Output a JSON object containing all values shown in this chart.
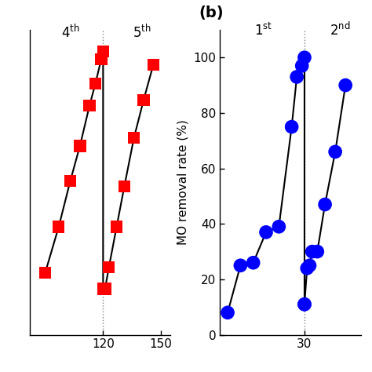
{
  "panel_a": {
    "cycle4_x": [
      90,
      97,
      103,
      108,
      113,
      116,
      119,
      120
    ],
    "cycle4_y": [
      18,
      35,
      52,
      65,
      80,
      88,
      97,
      100
    ],
    "cycle4_bottom_x": 120,
    "cycle4_bottom_y": 12,
    "cycle5_start_x": 121,
    "cycle5_start_y": 12,
    "cycle5_x": [
      121,
      123,
      127,
      131,
      136,
      141,
      146
    ],
    "cycle5_y": [
      12,
      20,
      35,
      50,
      68,
      82,
      95
    ],
    "vline_x": 120,
    "xlim": [
      82,
      155
    ],
    "xticks": [
      120,
      150
    ],
    "ylim": [
      -5,
      108
    ],
    "color": "#FF0000",
    "marker": "s",
    "markersize": 7
  },
  "panel_b": {
    "cycle1_x": [
      0,
      5,
      10,
      15,
      20,
      25,
      27,
      29,
      30
    ],
    "cycle1_y": [
      8,
      25,
      26,
      37,
      39,
      75,
      93,
      97,
      100
    ],
    "cycle1_bottom_x": 30,
    "cycle1_bottom_y": 11,
    "cycle2_x": [
      30,
      31,
      32,
      33,
      35,
      38,
      42,
      46
    ],
    "cycle2_y": [
      11,
      24,
      25,
      30,
      30,
      47,
      66,
      90
    ],
    "vline_x": 30,
    "xlim": [
      -3,
      52
    ],
    "xticks": [
      30
    ],
    "ylabel": "MO removal rate (%)",
    "ylim": [
      0,
      110
    ],
    "yticks": [
      0,
      20,
      40,
      60,
      80,
      100
    ],
    "color": "#0000FF",
    "marker": "o",
    "markersize": 9
  },
  "background": "#FFFFFF",
  "label_b": "(b)"
}
